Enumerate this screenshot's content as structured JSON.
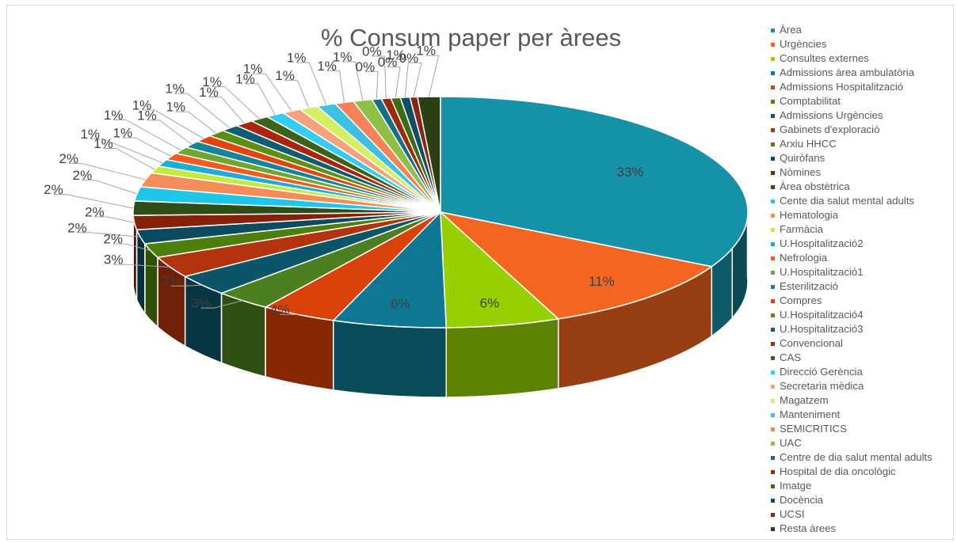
{
  "chart_data": {
    "type": "pie",
    "variant": "3d-exploded-top",
    "title": "% Consum paper per àrees",
    "legend_position": "right",
    "slices": [
      {
        "name": "Àrea",
        "value": 33,
        "label": "33%",
        "color": "#1592a8"
      },
      {
        "name": "Urgències",
        "value": 11,
        "label": "11%",
        "color": "#f4661f"
      },
      {
        "name": "Consultes externes",
        "value": 6,
        "label": "6%",
        "color": "#96d000"
      },
      {
        "name": "Admissions àrea ambulatòria",
        "value": 6,
        "label": "6%",
        "color": "#0e7793"
      },
      {
        "name": "Admissions Hospitalització",
        "value": 4,
        "label": "4%",
        "color": "#d8410a"
      },
      {
        "name": "Comptabilitat",
        "value": 3,
        "label": "3%",
        "color": "#4c7f1f"
      },
      {
        "name": "Admissions Urgències",
        "value": 3,
        "label": "3%",
        "color": "#0b5569"
      },
      {
        "name": "Gabinets d'exploració",
        "value": 3,
        "label": "3%",
        "color": "#b3330f"
      },
      {
        "name": "Arxiu HHCC",
        "value": 2,
        "label": "2%",
        "color": "#4d7f0b"
      },
      {
        "name": "Quiròfans",
        "value": 2,
        "label": "2%",
        "color": "#0c4b5f"
      },
      {
        "name": "Nòmines",
        "value": 2,
        "label": "2%",
        "color": "#862108"
      },
      {
        "name": "Àrea obstètrica",
        "value": 2,
        "label": "2%",
        "color": "#2f4e17"
      },
      {
        "name": "Cente dia salut mental adults",
        "value": 2,
        "label": "2%",
        "color": "#1ec6ea"
      },
      {
        "name": "Hematologia",
        "value": 2,
        "label": "2%",
        "color": "#f58d5b"
      },
      {
        "name": "Farmàcia",
        "value": 1,
        "label": "1%",
        "color": "#c2ec3c"
      },
      {
        "name": "U.Hospitalització2",
        "value": 1,
        "label": "1%",
        "color": "#1aaed6"
      },
      {
        "name": "Nefrologia",
        "value": 1,
        "label": "1%",
        "color": "#f55a1d"
      },
      {
        "name": "U.Hospitalització1",
        "value": 1,
        "label": "1%",
        "color": "#6ea72e"
      },
      {
        "name": "Esterilització",
        "value": 1,
        "label": "1%",
        "color": "#138499"
      },
      {
        "name": "Compres",
        "value": 1,
        "label": "1%",
        "color": "#e0460c"
      },
      {
        "name": "U.Hospitalització4",
        "value": 1,
        "label": "1%",
        "color": "#5c8f0e"
      },
      {
        "name": "U.Hospitalització3",
        "value": 1,
        "label": "1%",
        "color": "#0d5d75"
      },
      {
        "name": "Convencional",
        "value": 1,
        "label": "1%",
        "color": "#a8270c"
      },
      {
        "name": "CAS",
        "value": 1,
        "label": "1%",
        "color": "#3e6219"
      },
      {
        "name": "Direcció Gerència",
        "value": 1,
        "label": "1%",
        "color": "#34cdf1"
      },
      {
        "name": "Secretaria mèdica",
        "value": 1,
        "label": "1%",
        "color": "#f6a17b"
      },
      {
        "name": "Magatzem",
        "value": 1,
        "label": "1%",
        "color": "#d4f061"
      },
      {
        "name": "Manteniment",
        "value": 1,
        "label": "1%",
        "color": "#3cc1e0"
      },
      {
        "name": "SEMICRITICS",
        "value": 1,
        "label": "1%",
        "color": "#f7815a"
      },
      {
        "name": "UAC",
        "value": 1,
        "label": "1%",
        "color": "#8ec046"
      },
      {
        "name": "Centre de dia salut mental adults",
        "value": 0.5,
        "label": "0%",
        "color": "#156f86"
      },
      {
        "name": "Hospital de dia oncològic",
        "value": 0.5,
        "label": "0%",
        "color": "#9c2a0e"
      },
      {
        "name": "Imatge",
        "value": 0.5,
        "label": "0%",
        "color": "#3d6a12"
      },
      {
        "name": "Docència",
        "value": 0.5,
        "label": "1%",
        "color": "#0f4f66"
      },
      {
        "name": "UCSI",
        "value": 0.4,
        "label": "0%",
        "color": "#8a2512"
      },
      {
        "name": "Resta àrees",
        "value": 1.2,
        "label": "1%",
        "color": "#2c3f12"
      }
    ]
  }
}
